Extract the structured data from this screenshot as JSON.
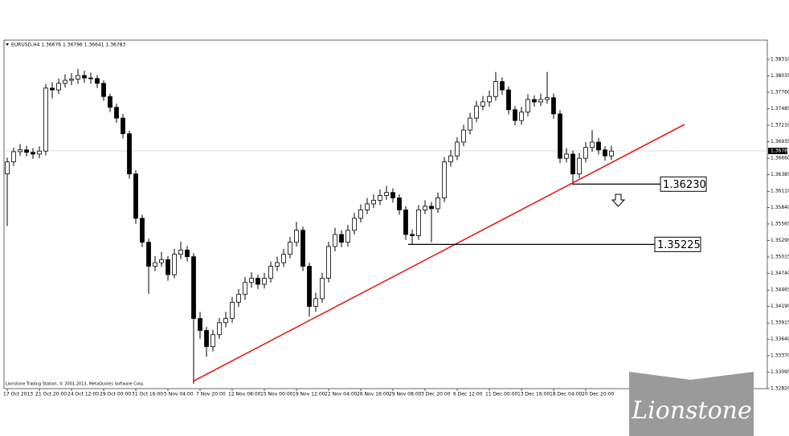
{
  "chart_data": {
    "type": "candlestick",
    "title": "EURUSD,H4  1.36676 1.36796 1.36641 1.36783",
    "footer": "Lionstone Trading Station, © 2001-2013, MetaQuotes Software Corp.",
    "logo": "Lionstone",
    "categories": [
      "17 Oct 2013",
      null,
      null,
      null,
      null,
      "21 Oct 20:00",
      null,
      null,
      null,
      null,
      "24 Oct 12:00",
      null,
      null,
      null,
      null,
      "29 Oct 00:00",
      null,
      null,
      null,
      null,
      "31 Oct 16:00",
      null,
      null,
      null,
      null,
      "5 Nov 04:00",
      null,
      null,
      null,
      null,
      "7 Nov 20:00",
      null,
      null,
      null,
      null,
      "12 Nov 08:00",
      null,
      null,
      null,
      null,
      "15 Nov 00:00",
      null,
      null,
      null,
      null,
      "19 Nov 12:00",
      null,
      null,
      null,
      null,
      "22 Nov 04:00",
      null,
      null,
      null,
      null,
      "26 Nov 16:00",
      null,
      null,
      null,
      null,
      "29 Nov 08:00",
      null,
      null,
      null,
      null,
      "3 Dec 20:00",
      null,
      null,
      null,
      null,
      "6 Dec 12:00",
      null,
      null,
      null,
      null,
      "11 Dec 00:00",
      null,
      null,
      null,
      null,
      "13 Dec 16:00",
      null,
      null,
      null,
      null,
      "18 Dec 04:00",
      null,
      null,
      null,
      null,
      "20 Dec 20:00",
      null,
      null,
      null,
      null
    ],
    "open": [
      1.364,
      1.366,
      1.3677,
      1.368,
      1.3676,
      1.3673,
      1.3678,
      1.3783,
      1.378,
      1.3791,
      1.3796,
      1.3798,
      1.3804,
      1.38,
      1.3799,
      1.3791,
      1.3769,
      1.3751,
      1.3733,
      1.3707,
      1.364,
      1.3566,
      1.3526,
      1.3486,
      1.3492,
      1.3497,
      1.3472,
      1.3506,
      1.3513,
      1.3502,
      1.3399,
      1.3379,
      1.3352,
      1.3372,
      1.3392,
      1.3399,
      1.3426,
      1.3439,
      1.3459,
      1.3466,
      1.3456,
      1.3466,
      1.3486,
      1.3492,
      1.3506,
      1.3526,
      1.3546,
      1.3486,
      1.3419,
      1.3432,
      1.3466,
      1.3519,
      1.3539,
      1.3526,
      1.3546,
      1.3566,
      1.358,
      1.359,
      1.3596,
      1.3604,
      1.3609,
      1.36,
      1.358,
      1.3539,
      1.3537,
      1.358,
      1.3586,
      1.3582,
      1.36,
      1.366,
      1.367,
      1.3693,
      1.3713,
      1.3733,
      1.3753,
      1.376,
      1.3769,
      1.3794,
      1.378,
      1.3747,
      1.3729,
      1.3743,
      1.3764,
      1.376,
      1.3764,
      1.3767,
      1.374,
      1.3666,
      1.3673,
      1.364,
      1.3666,
      1.3684,
      1.3693,
      1.368,
      1.367
    ],
    "high": [
      1.3667,
      1.3684,
      1.369,
      1.3687,
      1.3683,
      1.3686,
      1.379,
      1.3793,
      1.3799,
      1.3806,
      1.3808,
      1.3815,
      1.3812,
      1.3809,
      1.3805,
      1.3796,
      1.3774,
      1.3757,
      1.374,
      1.3712,
      1.3646,
      1.3572,
      1.3532,
      1.3503,
      1.351,
      1.3503,
      1.3515,
      1.3527,
      1.352,
      1.3508,
      1.341,
      1.3385,
      1.338,
      1.34,
      1.341,
      1.3435,
      1.3448,
      1.3468,
      1.3476,
      1.3472,
      1.3475,
      1.3494,
      1.3502,
      1.3515,
      1.3535,
      1.356,
      1.3552,
      1.3492,
      1.3442,
      1.3475,
      1.3527,
      1.355,
      1.3546,
      1.3555,
      1.3575,
      1.3589,
      1.36,
      1.3606,
      1.3614,
      1.362,
      1.3616,
      1.3606,
      1.3586,
      1.3547,
      1.3588,
      1.3596,
      1.3593,
      1.3609,
      1.3668,
      1.368,
      1.3701,
      1.3722,
      1.3742,
      1.3762,
      1.377,
      1.3779,
      1.381,
      1.3801,
      1.3786,
      1.3753,
      1.3752,
      1.3773,
      1.3771,
      1.3774,
      1.381,
      1.3774,
      1.3746,
      1.3683,
      1.3679,
      1.3675,
      1.3693,
      1.3713,
      1.37,
      1.3686,
      1.3687
    ],
    "low": [
      1.3553,
      1.3653,
      1.367,
      1.3669,
      1.3665,
      1.3666,
      1.3671,
      1.3766,
      1.3773,
      1.3784,
      1.3788,
      1.379,
      1.3792,
      1.379,
      1.3783,
      1.3762,
      1.3743,
      1.3725,
      1.3699,
      1.3632,
      1.3557,
      1.3518,
      1.344,
      1.3478,
      1.3485,
      1.3462,
      1.3466,
      1.3498,
      1.3494,
      1.329,
      1.3365,
      1.3335,
      1.3344,
      1.3365,
      1.3384,
      1.3392,
      1.3418,
      1.343,
      1.345,
      1.3448,
      1.3449,
      1.3459,
      1.3478,
      1.3485,
      1.3499,
      1.3519,
      1.3478,
      1.3402,
      1.341,
      1.3425,
      1.3459,
      1.3511,
      1.3518,
      1.3519,
      1.3539,
      1.3559,
      1.3573,
      1.3583,
      1.3588,
      1.3597,
      1.3592,
      1.3572,
      1.353,
      1.3522,
      1.353,
      1.3573,
      1.3526,
      1.3575,
      1.3593,
      1.3652,
      1.3663,
      1.3686,
      1.3706,
      1.3726,
      1.3746,
      1.3752,
      1.3762,
      1.3772,
      1.3739,
      1.3721,
      1.3722,
      1.3736,
      1.3752,
      1.3753,
      1.3757,
      1.3732,
      1.3658,
      1.3659,
      1.3624,
      1.3633,
      1.3659,
      1.3677,
      1.3672,
      1.3662,
      1.3663
    ],
    "close": [
      1.366,
      1.3677,
      1.368,
      1.3676,
      1.3673,
      1.3678,
      1.3783,
      1.378,
      1.3791,
      1.3796,
      1.3798,
      1.3804,
      1.38,
      1.3799,
      1.3791,
      1.3769,
      1.3751,
      1.3733,
      1.3707,
      1.364,
      1.3566,
      1.3526,
      1.3486,
      1.3492,
      1.3497,
      1.3472,
      1.3506,
      1.3513,
      1.3502,
      1.3399,
      1.3379,
      1.3352,
      1.3372,
      1.3392,
      1.3399,
      1.3426,
      1.3439,
      1.3459,
      1.3466,
      1.3456,
      1.3466,
      1.3486,
      1.3492,
      1.3506,
      1.3526,
      1.3546,
      1.3486,
      1.3419,
      1.3432,
      1.3466,
      1.3519,
      1.3539,
      1.3526,
      1.3546,
      1.3566,
      1.358,
      1.359,
      1.3596,
      1.3604,
      1.3609,
      1.36,
      1.358,
      1.3539,
      1.3537,
      1.358,
      1.3586,
      1.3582,
      1.36,
      1.366,
      1.367,
      1.3693,
      1.3713,
      1.3733,
      1.3753,
      1.376,
      1.3769,
      1.3794,
      1.378,
      1.3747,
      1.3729,
      1.3743,
      1.3764,
      1.376,
      1.3764,
      1.3767,
      1.374,
      1.3666,
      1.3673,
      1.364,
      1.3666,
      1.3684,
      1.3693,
      1.368,
      1.367,
      1.3678
    ],
    "up_color": "#ffffff",
    "down_color": "#000000",
    "ylim": [
      1.3282,
      1.3863
    ],
    "yticks": [
      {
        "value": 1.3831,
        "label": "1.38310"
      },
      {
        "value": 1.38035,
        "label": "1.38035"
      },
      {
        "value": 1.3776,
        "label": "1.37760"
      },
      {
        "value": 1.37485,
        "label": "1.37485"
      },
      {
        "value": 1.3721,
        "label": "1.37210"
      },
      {
        "value": 1.36935,
        "label": "1.36935"
      },
      {
        "value": 1.3666,
        "label": "1.36660"
      },
      {
        "value": 1.36385,
        "label": "1.36385"
      },
      {
        "value": 1.3611,
        "label": "1.36110"
      },
      {
        "value": 1.3584,
        "label": "1.35840"
      },
      {
        "value": 1.35565,
        "label": "1.35565"
      },
      {
        "value": 1.3529,
        "label": "1.35290"
      },
      {
        "value": 1.35015,
        "label": "1.35015"
      },
      {
        "value": 1.3474,
        "label": "1.34740"
      },
      {
        "value": 1.34465,
        "label": "1.34465"
      },
      {
        "value": 1.3419,
        "label": "1.34190"
      },
      {
        "value": 1.33915,
        "label": "1.33915"
      },
      {
        "value": 1.3364,
        "label": "1.33640"
      },
      {
        "value": 1.3337,
        "label": "1.33370"
      },
      {
        "value": 1.33095,
        "label": "1.33095"
      },
      {
        "value": 1.3282,
        "label": "1.32820"
      }
    ],
    "current_price": 1.36783,
    "levels": [
      {
        "value": 1.3623,
        "label": "1.36230"
      },
      {
        "value": 1.35225,
        "label": "1.35225"
      }
    ]
  }
}
